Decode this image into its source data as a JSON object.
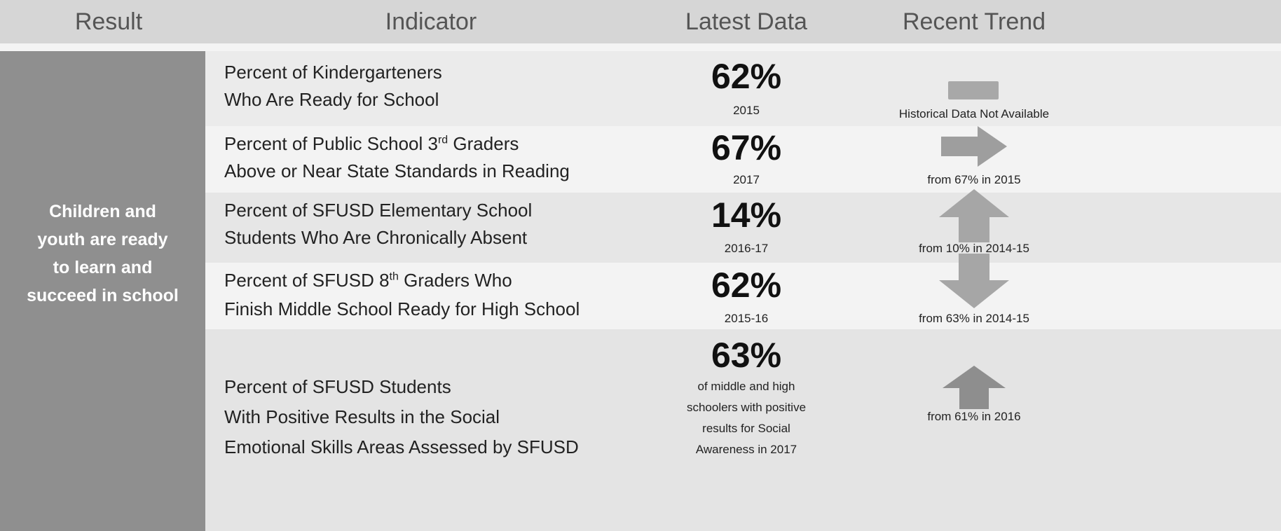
{
  "header": [
    "Result",
    "Indicator",
    "Latest Data",
    "Recent Trend"
  ],
  "result": [
    "Children and",
    "youth are ready",
    "to learn and",
    "succeed in school"
  ],
  "rows": [
    {
      "indicator": [
        [
          "Percent of Kindergarteners"
        ],
        [
          "Who Are Ready for School"
        ]
      ],
      "value": "62%",
      "period": [
        "2015"
      ],
      "trend": "Historical Data Not Available"
    },
    {
      "indicator": [
        [
          "Percent of Public School 3",
          "rd",
          " Graders"
        ],
        [
          "Above or Near State Standards in Reading"
        ]
      ],
      "value": "67%",
      "period": [
        "2017"
      ],
      "trend": "from 67% in 2015"
    },
    {
      "indicator": [
        [
          "Percent of SFUSD Elementary School"
        ],
        [
          "Students Who Are Chronically Absent"
        ]
      ],
      "value": "14%",
      "period": [
        "2016-17"
      ],
      "trend": "from 10% in 2014-15"
    },
    {
      "indicator": [
        [
          "Percent of SFUSD 8",
          "th",
          " Graders Who"
        ],
        [
          "Finish Middle School Ready for High School"
        ]
      ],
      "value": "62%",
      "period": [
        "2015-16"
      ],
      "trend": "from 63% in 2014-15"
    },
    {
      "indicator": [
        [
          "Percent of SFUSD Students"
        ],
        [
          "With Positive Results in the Social"
        ],
        [
          "Emotional Skills Areas Assessed by SFUSD"
        ]
      ],
      "value": "63%",
      "period": [
        "of middle and high",
        "schoolers with positive",
        "results for Social",
        "Awareness in 2017"
      ],
      "trend": "from 61% in 2016"
    }
  ]
}
